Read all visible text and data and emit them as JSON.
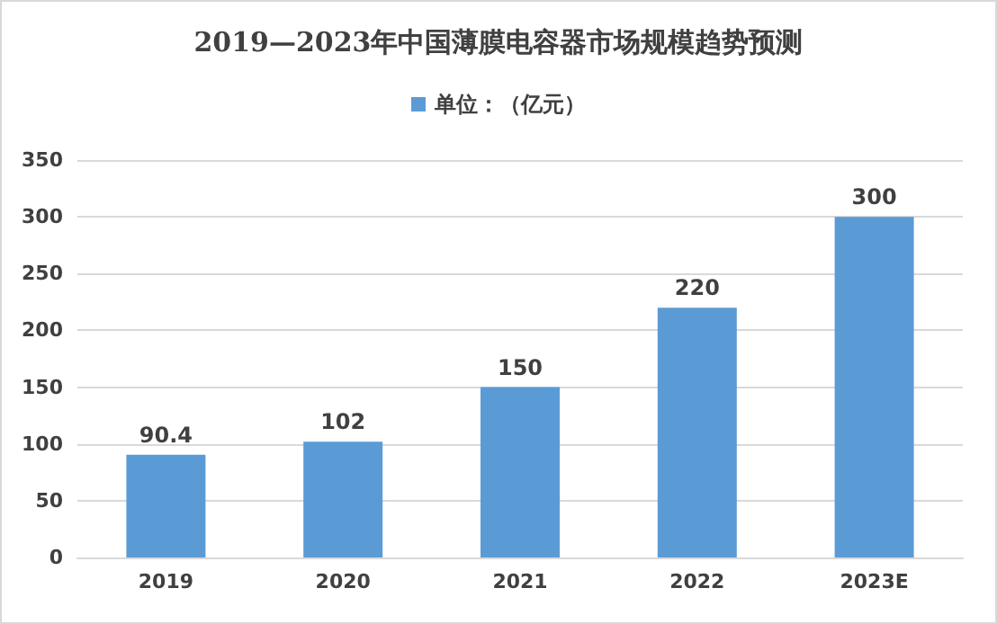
{
  "chart_data": {
    "type": "bar",
    "title": "2019—2023年中国薄膜电容器市场规模趋势预测",
    "categories": [
      "2019",
      "2020",
      "2021",
      "2022",
      "2023E"
    ],
    "series": [
      {
        "name": "单位：（亿元）",
        "color": "#5b9bd5",
        "values": [
          90.4,
          102,
          150,
          220,
          300
        ]
      }
    ],
    "ylim": [
      0,
      350
    ],
    "yticks": [
      0,
      50,
      100,
      150,
      200,
      250,
      300,
      350
    ],
    "grid": "y",
    "legend": "top",
    "data_labels": true
  }
}
